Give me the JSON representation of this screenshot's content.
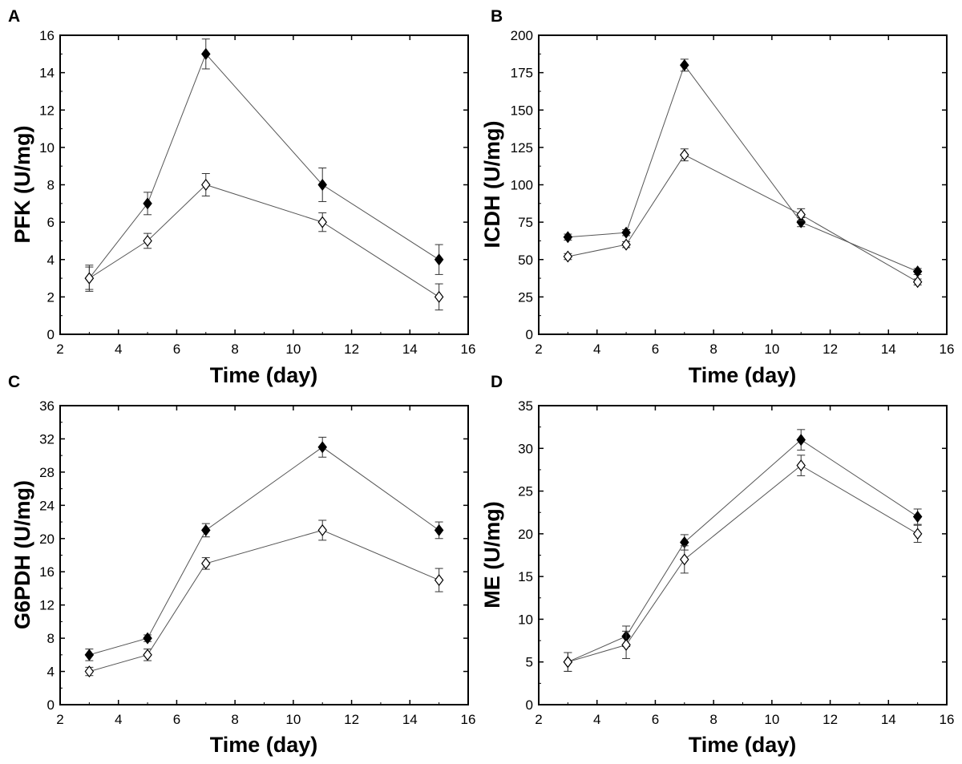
{
  "chart_data": [
    {
      "panel": "A",
      "type": "line",
      "xlabel": "Time (day)",
      "ylabel": "PFK (U/mg)",
      "xlim": [
        2,
        16
      ],
      "ylim": [
        0,
        16
      ],
      "x_ticks": [
        2,
        4,
        6,
        8,
        10,
        12,
        14,
        16
      ],
      "y_ticks": [
        0,
        2,
        4,
        6,
        8,
        10,
        12,
        14,
        16
      ],
      "x": [
        3,
        5,
        7,
        11,
        15
      ],
      "series": [
        {
          "name": "filled diamond",
          "marker": "filled",
          "values": [
            3,
            7,
            15,
            8,
            4
          ],
          "errors": [
            0.6,
            0.6,
            0.8,
            0.9,
            0.8
          ]
        },
        {
          "name": "open diamond",
          "marker": "open",
          "values": [
            3,
            5,
            8,
            6,
            2
          ],
          "errors": [
            0.7,
            0.4,
            0.6,
            0.5,
            0.7
          ]
        }
      ]
    },
    {
      "panel": "B",
      "type": "line",
      "xlabel": "Time (day)",
      "ylabel": "ICDH (U/mg)",
      "xlim": [
        2,
        16
      ],
      "ylim": [
        0,
        200
      ],
      "x_ticks": [
        2,
        4,
        6,
        8,
        10,
        12,
        14,
        16
      ],
      "y_ticks": [
        0,
        25,
        50,
        75,
        100,
        125,
        150,
        175,
        200
      ],
      "x": [
        3,
        5,
        7,
        11,
        15
      ],
      "series": [
        {
          "name": "filled diamond",
          "marker": "filled",
          "values": [
            65,
            68,
            180,
            75,
            42
          ],
          "errors": [
            2,
            2,
            4,
            3,
            2
          ]
        },
        {
          "name": "open diamond",
          "marker": "open",
          "values": [
            52,
            60,
            120,
            80,
            35
          ],
          "errors": [
            2,
            2,
            4,
            4,
            2
          ]
        }
      ]
    },
    {
      "panel": "C",
      "type": "line",
      "xlabel": "Time (day)",
      "ylabel": "G6PDH (U/mg)",
      "xlim": [
        2,
        16
      ],
      "ylim": [
        0,
        36
      ],
      "x_ticks": [
        2,
        4,
        6,
        8,
        10,
        12,
        14,
        16
      ],
      "y_ticks": [
        0,
        4,
        8,
        12,
        16,
        20,
        24,
        28,
        32,
        36
      ],
      "x": [
        3,
        5,
        7,
        11,
        15
      ],
      "series": [
        {
          "name": "filled diamond",
          "marker": "filled",
          "values": [
            6,
            8,
            21,
            31,
            21
          ],
          "errors": [
            0.7,
            0.4,
            0.8,
            1.2,
            1.0
          ]
        },
        {
          "name": "open diamond",
          "marker": "open",
          "values": [
            4,
            6,
            17,
            21,
            15
          ],
          "errors": [
            0.5,
            0.7,
            0.7,
            1.2,
            1.4
          ]
        }
      ]
    },
    {
      "panel": "D",
      "type": "line",
      "xlabel": "Time (day)",
      "ylabel": "ME (U/mg)",
      "xlim": [
        2,
        16
      ],
      "ylim": [
        0,
        35
      ],
      "x_ticks": [
        2,
        4,
        6,
        8,
        10,
        12,
        14,
        16
      ],
      "y_ticks": [
        0,
        5,
        10,
        15,
        20,
        25,
        30,
        35
      ],
      "x": [
        3,
        5,
        7,
        11,
        15
      ],
      "series": [
        {
          "name": "filled diamond",
          "marker": "filled",
          "values": [
            5,
            8,
            19,
            31,
            22
          ],
          "errors": [
            1.1,
            1.2,
            0.9,
            1.2,
            0.9
          ]
        },
        {
          "name": "open diamond",
          "marker": "open",
          "values": [
            5,
            7,
            17,
            28,
            20
          ],
          "errors": [
            1.1,
            1.6,
            1.6,
            1.2,
            1.0
          ]
        }
      ]
    }
  ]
}
